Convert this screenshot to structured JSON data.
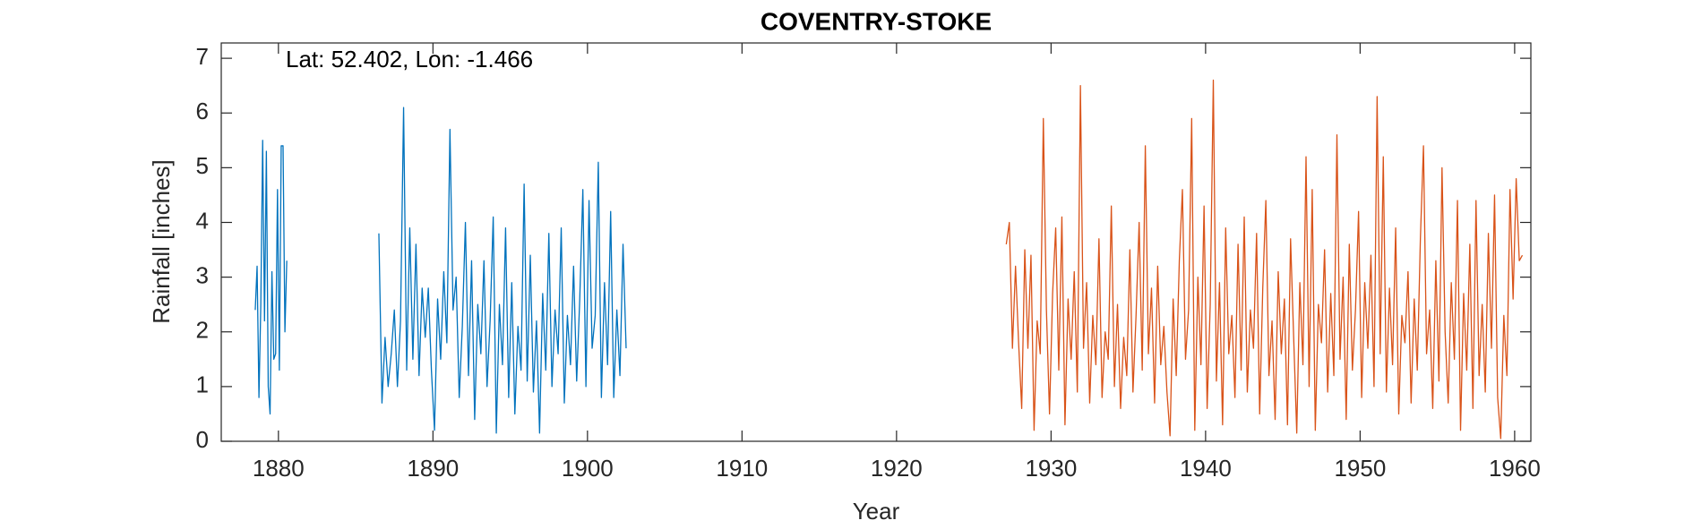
{
  "chart_data": {
    "type": "line",
    "title": "COVENTRY-STOKE",
    "annotation": "Lat: 52.402, Lon: -1.466",
    "x_label": "Year",
    "y_label": "Rainfall [inches]",
    "xlim": [
      1876.3,
      1961.05
    ],
    "ylim": [
      0,
      7.28
    ],
    "xticks": [
      1880,
      1890,
      1900,
      1910,
      1920,
      1930,
      1940,
      1950,
      1960
    ],
    "yticks": [
      0,
      1,
      2,
      3,
      4,
      5,
      6,
      7
    ],
    "grid": false,
    "series": [
      {
        "color": "#0072bd",
        "x": [
          1878.5,
          1878.62,
          1878.74,
          1878.86,
          1878.98,
          1879.1,
          1879.22,
          1879.34,
          1879.46,
          1879.58,
          1879.7,
          1879.82,
          1879.94,
          1880.06,
          1880.18,
          1880.3,
          1880.42,
          1880.54,
          1883.0,
          1886.5,
          1886.7,
          1886.9,
          1887.1,
          1887.3,
          1887.5,
          1887.7,
          1887.9,
          1888.1,
          1888.3,
          1888.5,
          1888.7,
          1888.9,
          1889.1,
          1889.3,
          1889.5,
          1889.7,
          1889.9,
          1890.1,
          1890.3,
          1890.5,
          1890.7,
          1890.9,
          1891.1,
          1891.3,
          1891.5,
          1891.7,
          1891.9,
          1892.1,
          1892.3,
          1892.5,
          1892.7,
          1892.9,
          1893.1,
          1893.3,
          1893.5,
          1893.7,
          1893.9,
          1894.1,
          1894.3,
          1894.5,
          1894.7,
          1894.9,
          1895.1,
          1895.3,
          1895.5,
          1895.7,
          1895.9,
          1896.1,
          1896.3,
          1896.5,
          1896.7,
          1896.9,
          1897.1,
          1897.3,
          1897.5,
          1897.7,
          1897.9,
          1898.1,
          1898.3,
          1898.5,
          1898.7,
          1898.9,
          1899.1,
          1899.3,
          1899.5,
          1899.7,
          1899.9,
          1900.1,
          1900.3,
          1900.5,
          1900.7,
          1900.9,
          1901.1,
          1901.3,
          1901.5,
          1901.7,
          1901.9,
          1902.1,
          1902.3,
          1902.5
        ],
        "values": [
          2.4,
          3.2,
          0.8,
          2.5,
          5.5,
          2.2,
          5.3,
          1.0,
          0.5,
          3.1,
          1.5,
          1.6,
          4.6,
          1.3,
          5.4,
          5.4,
          2.0,
          3.3,
          null,
          3.8,
          0.7,
          1.9,
          1.0,
          1.6,
          2.4,
          1.0,
          2.2,
          6.1,
          1.3,
          3.9,
          1.5,
          3.6,
          1.2,
          2.8,
          1.9,
          2.8,
          1.3,
          0.2,
          2.6,
          1.5,
          3.1,
          1.8,
          5.7,
          2.4,
          3.0,
          0.8,
          2.1,
          4.0,
          1.2,
          3.3,
          0.4,
          2.5,
          1.6,
          3.3,
          1.0,
          2.2,
          4.1,
          0.15,
          2.5,
          1.4,
          3.9,
          0.8,
          2.9,
          0.5,
          2.1,
          1.3,
          4.7,
          1.1,
          3.4,
          0.9,
          2.2,
          0.15,
          2.7,
          1.3,
          3.8,
          1.0,
          2.4,
          1.6,
          3.9,
          0.7,
          2.3,
          1.4,
          3.2,
          1.1,
          2.6,
          4.6,
          1.0,
          4.4,
          1.7,
          2.3,
          5.1,
          0.8,
          2.9,
          1.4,
          4.2,
          0.8,
          2.4,
          1.2,
          3.6,
          1.7
        ]
      },
      {
        "color": "#d95319",
        "x": [
          1927.1,
          1927.3,
          1927.5,
          1927.7,
          1927.9,
          1928.1,
          1928.3,
          1928.5,
          1928.7,
          1928.9,
          1929.1,
          1929.3,
          1929.5,
          1929.7,
          1929.9,
          1930.1,
          1930.3,
          1930.5,
          1930.7,
          1930.9,
          1931.1,
          1931.3,
          1931.5,
          1931.7,
          1931.9,
          1932.1,
          1932.3,
          1932.5,
          1932.7,
          1932.9,
          1933.1,
          1933.3,
          1933.5,
          1933.7,
          1933.9,
          1934.1,
          1934.3,
          1934.5,
          1934.7,
          1934.9,
          1935.1,
          1935.3,
          1935.5,
          1935.7,
          1935.9,
          1936.1,
          1936.3,
          1936.5,
          1936.7,
          1936.9,
          1937.1,
          1937.3,
          1937.5,
          1937.7,
          1937.9,
          1938.1,
          1938.3,
          1938.5,
          1938.7,
          1938.9,
          1939.1,
          1939.3,
          1939.5,
          1939.7,
          1939.9,
          1940.1,
          1940.3,
          1940.5,
          1940.7,
          1940.9,
          1941.1,
          1941.3,
          1941.5,
          1941.7,
          1941.9,
          1942.1,
          1942.3,
          1942.5,
          1942.7,
          1942.9,
          1943.1,
          1943.3,
          1943.5,
          1943.7,
          1943.9,
          1944.1,
          1944.3,
          1944.5,
          1944.7,
          1944.9,
          1945.1,
          1945.3,
          1945.5,
          1945.7,
          1945.9,
          1946.1,
          1946.3,
          1946.5,
          1946.7,
          1946.9,
          1947.1,
          1947.3,
          1947.5,
          1947.7,
          1947.9,
          1948.1,
          1948.3,
          1948.5,
          1948.7,
          1948.9,
          1949.1,
          1949.3,
          1949.5,
          1949.7,
          1949.9,
          1950.1,
          1950.3,
          1950.5,
          1950.7,
          1950.9,
          1951.1,
          1951.3,
          1951.5,
          1951.7,
          1951.9,
          1952.1,
          1952.3,
          1952.5,
          1952.7,
          1952.9,
          1953.1,
          1953.3,
          1953.5,
          1953.7,
          1953.9,
          1954.1,
          1954.3,
          1954.5,
          1954.7,
          1954.9,
          1955.1,
          1955.3,
          1955.5,
          1955.7,
          1955.9,
          1956.1,
          1956.3,
          1956.5,
          1956.7,
          1956.9,
          1957.1,
          1957.3,
          1957.5,
          1957.7,
          1957.9,
          1958.1,
          1958.3,
          1958.5,
          1958.7,
          1958.9,
          1959.1,
          1959.3,
          1959.5,
          1959.7,
          1959.9,
          1960.1,
          1960.3,
          1960.5
        ],
        "values": [
          3.6,
          4.0,
          1.7,
          3.2,
          1.8,
          0.6,
          3.5,
          1.7,
          3.4,
          0.2,
          2.2,
          1.6,
          5.9,
          2.4,
          0.5,
          2.7,
          3.9,
          1.3,
          4.1,
          0.3,
          2.6,
          1.5,
          3.1,
          0.9,
          6.5,
          1.7,
          2.9,
          0.7,
          2.3,
          1.4,
          3.7,
          0.8,
          2.0,
          1.5,
          4.3,
          1.0,
          2.5,
          0.6,
          1.9,
          1.2,
          3.5,
          0.9,
          2.3,
          4.0,
          1.3,
          5.4,
          1.6,
          2.8,
          0.7,
          3.2,
          1.4,
          2.1,
          0.9,
          0.1,
          2.6,
          1.2,
          3.3,
          4.6,
          1.5,
          2.4,
          5.9,
          0.2,
          3.0,
          1.4,
          4.3,
          0.6,
          2.5,
          6.6,
          1.1,
          2.9,
          0.3,
          3.9,
          1.6,
          2.3,
          0.8,
          3.6,
          1.3,
          4.1,
          0.9,
          2.4,
          1.7,
          3.8,
          0.5,
          2.8,
          4.4,
          1.2,
          2.2,
          0.4,
          3.1,
          1.6,
          2.6,
          0.3,
          3.7,
          1.9,
          0.15,
          2.9,
          1.4,
          5.2,
          1.0,
          4.6,
          0.2,
          2.5,
          1.8,
          3.5,
          0.9,
          2.7,
          1.2,
          5.6,
          1.5,
          3.0,
          0.4,
          3.6,
          1.3,
          2.4,
          4.2,
          0.8,
          2.9,
          1.7,
          3.4,
          1.0,
          6.3,
          1.6,
          5.2,
          0.9,
          2.8,
          1.4,
          3.9,
          0.5,
          2.3,
          1.8,
          3.1,
          0.7,
          2.6,
          1.3,
          3.7,
          5.4,
          1.6,
          2.4,
          0.6,
          3.3,
          1.1,
          5.0,
          2.0,
          0.7,
          2.9,
          1.5,
          4.4,
          0.2,
          2.7,
          1.3,
          3.6,
          0.6,
          4.4,
          1.2,
          2.5,
          0.9,
          3.8,
          1.7,
          4.5,
          0.8,
          0.05,
          2.3,
          1.2,
          4.6,
          2.6,
          4.8,
          3.3,
          3.4
        ]
      }
    ]
  }
}
